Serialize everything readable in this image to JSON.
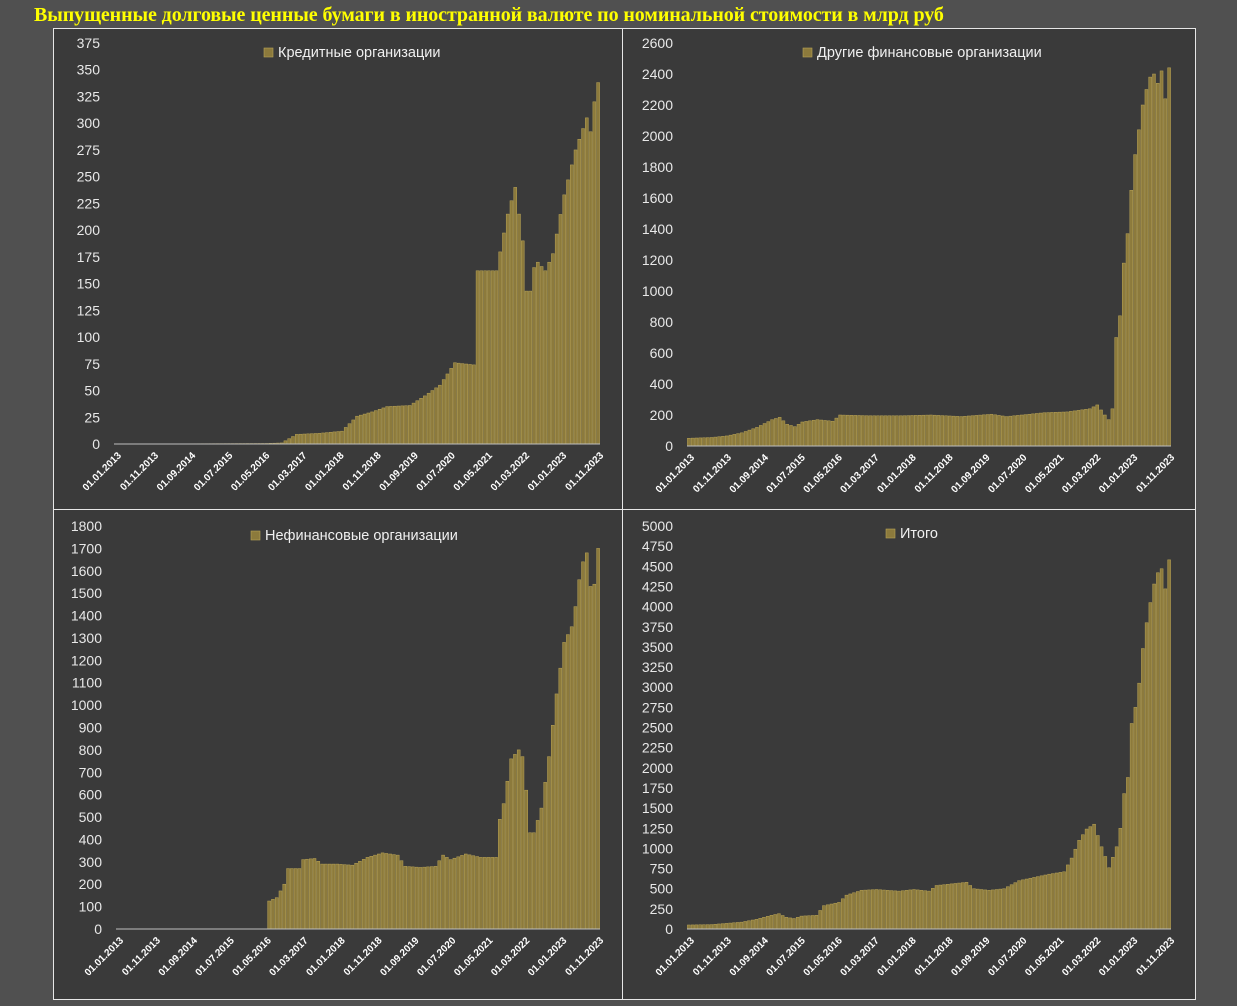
{
  "title": "Выпущенные долговые ценные бумаги в иностранной валюте по номинальной стоимости в млрд руб",
  "colors": {
    "bar": "#8c7a3c",
    "bar_edge": "#b8a356",
    "plot_bg": "#3a3a3a",
    "page_bg": "#505050",
    "title": "#ffff00"
  },
  "chart_data": [
    {
      "type": "bar",
      "series_name": "Кредитные организации",
      "ylim": [
        0,
        375
      ],
      "yticks": [
        0,
        25,
        50,
        75,
        100,
        125,
        150,
        175,
        200,
        225,
        250,
        275,
        300,
        325,
        350,
        375
      ],
      "xticks": [
        "01.01.2013",
        "01.11.2013",
        "01.09.2014",
        "01.07.2015",
        "01.05.2016",
        "01.03.2017",
        "01.01.2018",
        "01.11.2018",
        "01.09.2019",
        "01.07.2020",
        "01.05.2021",
        "01.03.2022",
        "01.01.2023",
        "01.11.2023"
      ],
      "anchors": [
        [
          0,
          0
        ],
        [
          40,
          0.5
        ],
        [
          44,
          1
        ],
        [
          48,
          9
        ],
        [
          54,
          10
        ],
        [
          60,
          12
        ],
        [
          64,
          26
        ],
        [
          68,
          30
        ],
        [
          72,
          35
        ],
        [
          78,
          36
        ],
        [
          82,
          45
        ],
        [
          86,
          55
        ],
        [
          90,
          76
        ],
        [
          95,
          74
        ],
        [
          96,
          162
        ],
        [
          101,
          162
        ],
        [
          104,
          215
        ],
        [
          106,
          240
        ],
        [
          108,
          190
        ],
        [
          110,
          143
        ],
        [
          112,
          170
        ],
        [
          114,
          162
        ],
        [
          116,
          178
        ],
        [
          119,
          233
        ],
        [
          122,
          275
        ],
        [
          125,
          305
        ],
        [
          126,
          292
        ],
        [
          127,
          320
        ],
        [
          128,
          338
        ]
      ],
      "dips": [
        [
          109,
          143
        ],
        [
          111,
          165
        ],
        [
          126,
          292
        ]
      ]
    },
    {
      "type": "bar",
      "series_name": "Другие финансовые организации",
      "ylim": [
        0,
        2600
      ],
      "yticks": [
        0,
        200,
        400,
        600,
        800,
        1000,
        1200,
        1400,
        1600,
        1800,
        2000,
        2200,
        2400,
        2600
      ],
      "xticks": [
        "01.01.2013",
        "01.11.2013",
        "01.09.2014",
        "01.07.2015",
        "01.05.2016",
        "01.03.2017",
        "01.01.2018",
        "01.11.2018",
        "01.09.2019",
        "01.07.2020",
        "01.05.2021",
        "01.03.2022",
        "01.01.2023",
        "01.11.2023"
      ],
      "anchors": [
        [
          0,
          50
        ],
        [
          6,
          55
        ],
        [
          10,
          65
        ],
        [
          14,
          85
        ],
        [
          18,
          120
        ],
        [
          22,
          170
        ],
        [
          24,
          185
        ],
        [
          26,
          140
        ],
        [
          28,
          125
        ],
        [
          30,
          155
        ],
        [
          34,
          170
        ],
        [
          38,
          160
        ],
        [
          40,
          200
        ],
        [
          48,
          195
        ],
        [
          56,
          195
        ],
        [
          64,
          200
        ],
        [
          72,
          190
        ],
        [
          80,
          205
        ],
        [
          84,
          190
        ],
        [
          88,
          200
        ],
        [
          94,
          215
        ],
        [
          100,
          220
        ],
        [
          106,
          240
        ],
        [
          108,
          265
        ],
        [
          110,
          200
        ],
        [
          111,
          170
        ],
        [
          112,
          240
        ],
        [
          113,
          700
        ],
        [
          114,
          840
        ],
        [
          115,
          1180
        ],
        [
          116,
          1370
        ],
        [
          117,
          1650
        ],
        [
          118,
          1880
        ],
        [
          119,
          2040
        ],
        [
          120,
          2200
        ],
        [
          121,
          2300
        ],
        [
          122,
          2380
        ],
        [
          123,
          2400
        ],
        [
          124,
          2340
        ],
        [
          125,
          2420
        ],
        [
          126,
          2240
        ],
        [
          127,
          2440
        ]
      ],
      "dips": []
    },
    {
      "type": "bar",
      "series_name": "Нефинансовые организации",
      "ylim": [
        0,
        1800
      ],
      "yticks": [
        0,
        100,
        200,
        300,
        400,
        500,
        600,
        700,
        800,
        900,
        1000,
        1100,
        1200,
        1300,
        1400,
        1500,
        1600,
        1700,
        1800
      ],
      "xticks": [
        "01.01.2013",
        "01.11.2013",
        "01.09.2014",
        "01.07.2015",
        "01.05.2016",
        "01.03.2017",
        "01.01.2018",
        "01.11.2018",
        "01.09.2019",
        "01.07.2020",
        "01.05.2021",
        "01.03.2022",
        "01.01.2023",
        "01.11.2023"
      ],
      "anchors": [
        [
          0,
          0
        ],
        [
          39,
          0
        ],
        [
          40,
          125
        ],
        [
          42,
          140
        ],
        [
          44,
          200
        ],
        [
          45,
          270
        ],
        [
          48,
          270
        ],
        [
          49,
          310
        ],
        [
          52,
          315
        ],
        [
          54,
          290
        ],
        [
          58,
          290
        ],
        [
          62,
          285
        ],
        [
          66,
          320
        ],
        [
          70,
          340
        ],
        [
          74,
          330
        ],
        [
          76,
          280
        ],
        [
          80,
          275
        ],
        [
          84,
          280
        ],
        [
          86,
          330
        ],
        [
          88,
          310
        ],
        [
          92,
          335
        ],
        [
          96,
          320
        ],
        [
          100,
          320
        ],
        [
          101,
          490
        ],
        [
          102,
          560
        ],
        [
          104,
          760
        ],
        [
          106,
          800
        ],
        [
          107,
          770
        ],
        [
          108,
          620
        ],
        [
          109,
          530
        ],
        [
          110,
          430
        ],
        [
          112,
          540
        ],
        [
          114,
          770
        ],
        [
          116,
          1050
        ],
        [
          118,
          1280
        ],
        [
          120,
          1350
        ],
        [
          121,
          1440
        ],
        [
          122,
          1560
        ],
        [
          123,
          1640
        ],
        [
          124,
          1680
        ],
        [
          125,
          1600
        ],
        [
          126,
          1540
        ],
        [
          127,
          1700
        ]
      ],
      "dips": [
        [
          109,
          430
        ],
        [
          125,
          1530
        ]
      ]
    },
    {
      "type": "bar",
      "series_name": "Итого",
      "ylim": [
        0,
        5000
      ],
      "yticks": [
        0,
        250,
        500,
        750,
        1000,
        1250,
        1500,
        1750,
        2000,
        2250,
        2500,
        2750,
        3000,
        3250,
        3500,
        3750,
        4000,
        4250,
        4500,
        4750,
        5000
      ],
      "xticks": [
        "01.01.2013",
        "01.11.2013",
        "01.09.2014",
        "01.07.2015",
        "01.05.2016",
        "01.03.2017",
        "01.01.2018",
        "01.11.2018",
        "01.09.2019",
        "01.07.2020",
        "01.05.2021",
        "01.03.2022",
        "01.01.2023",
        "01.11.2023"
      ],
      "anchors": [
        [
          0,
          50
        ],
        [
          6,
          55
        ],
        [
          10,
          70
        ],
        [
          14,
          85
        ],
        [
          18,
          120
        ],
        [
          22,
          170
        ],
        [
          24,
          190
        ],
        [
          26,
          145
        ],
        [
          28,
          130
        ],
        [
          30,
          160
        ],
        [
          34,
          170
        ],
        [
          36,
          290
        ],
        [
          40,
          330
        ],
        [
          42,
          420
        ],
        [
          46,
          480
        ],
        [
          50,
          490
        ],
        [
          56,
          470
        ],
        [
          60,
          490
        ],
        [
          64,
          470
        ],
        [
          66,
          540
        ],
        [
          70,
          560
        ],
        [
          74,
          580
        ],
        [
          76,
          500
        ],
        [
          80,
          480
        ],
        [
          84,
          500
        ],
        [
          88,
          600
        ],
        [
          92,
          640
        ],
        [
          96,
          680
        ],
        [
          100,
          710
        ],
        [
          102,
          880
        ],
        [
          104,
          1100
        ],
        [
          106,
          1240
        ],
        [
          108,
          1300
        ],
        [
          110,
          1020
        ],
        [
          111,
          900
        ],
        [
          112,
          760
        ],
        [
          113,
          890
        ],
        [
          114,
          1020
        ],
        [
          115,
          1250
        ],
        [
          116,
          1680
        ],
        [
          117,
          1880
        ],
        [
          118,
          2550
        ],
        [
          119,
          2750
        ],
        [
          120,
          3050
        ],
        [
          121,
          3480
        ],
        [
          122,
          3800
        ],
        [
          123,
          4050
        ],
        [
          124,
          4280
        ],
        [
          125,
          4420
        ],
        [
          126,
          4470
        ],
        [
          127,
          4220
        ],
        [
          128,
          4580
        ]
      ],
      "dips": []
    }
  ]
}
